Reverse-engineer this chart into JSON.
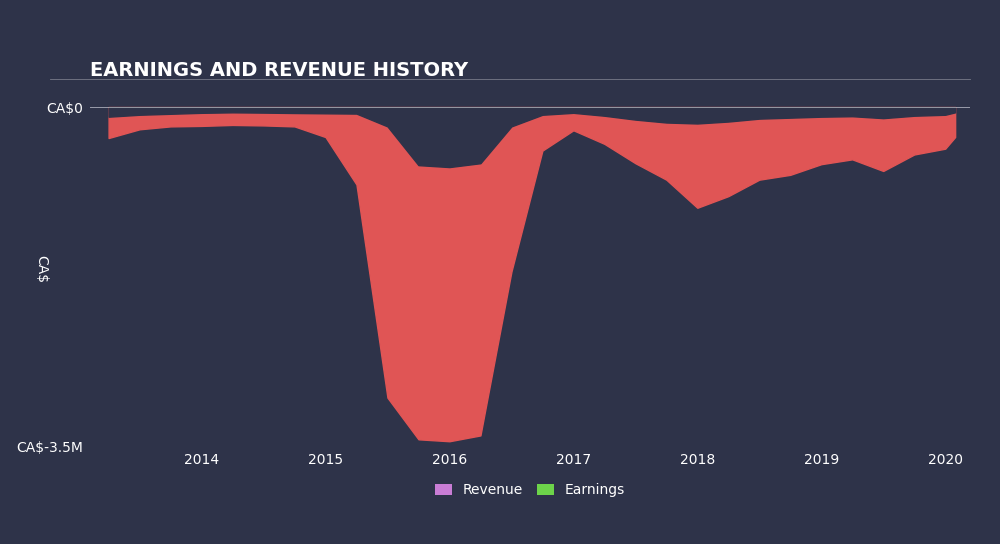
{
  "title": "EARNINGS AND REVENUE HISTORY",
  "background_color": "#2e3349",
  "plot_bg_color": "#2e3349",
  "grid_color": "#374060",
  "text_color": "#ffffff",
  "fill_color_revenue": "#e05555",
  "fill_color_earnings": "#e05555",
  "ylim": [
    -3500000,
    150000
  ],
  "ylabel_mid": "CA$",
  "ytick_labels_top": "CA$0",
  "ytick_labels_bot": "CA$-3.5M",
  "title_fontsize": 14,
  "axis_fontsize": 10,
  "x_dates": [
    2013.25,
    2013.5,
    2013.75,
    2014.0,
    2014.25,
    2014.5,
    2014.75,
    2015.0,
    2015.25,
    2015.5,
    2015.75,
    2016.0,
    2016.25,
    2016.5,
    2016.75,
    2017.0,
    2017.25,
    2017.5,
    2017.75,
    2018.0,
    2018.25,
    2018.5,
    2018.75,
    2019.0,
    2019.25,
    2019.5,
    2019.75,
    2020.0,
    2020.08
  ],
  "revenue_values": [
    -100000,
    -80000,
    -70000,
    -60000,
    -55000,
    -58000,
    -62000,
    -65000,
    -68000,
    -200000,
    -600000,
    -620000,
    -580000,
    -200000,
    -80000,
    -60000,
    -90000,
    -130000,
    -160000,
    -170000,
    -150000,
    -120000,
    -110000,
    -100000,
    -95000,
    -115000,
    -90000,
    -80000,
    -55000
  ],
  "earnings_values": [
    -320000,
    -230000,
    -200000,
    -195000,
    -185000,
    -190000,
    -200000,
    -310000,
    -800000,
    -3000000,
    -3430000,
    -3450000,
    -3390000,
    -1700000,
    -450000,
    -240000,
    -380000,
    -580000,
    -750000,
    -1040000,
    -920000,
    -750000,
    -700000,
    -590000,
    -540000,
    -660000,
    -490000,
    -430000,
    -310000
  ],
  "legend_revenue_color": "#c97dd5",
  "legend_earnings_color": "#6dd44a",
  "xlim_start": 2013.1,
  "xlim_end": 2020.2
}
